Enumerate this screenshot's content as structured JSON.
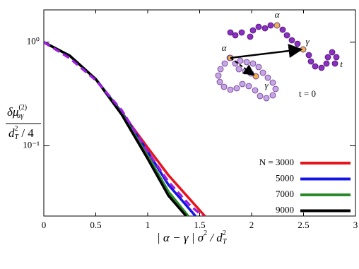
{
  "chart_data": {
    "type": "line",
    "ylabel": {
      "num": "δμ",
      "num_sup": "(2)",
      "num_sub": "αγ",
      "den": "d",
      "den_sup": "2",
      "den_sub": "T",
      "den_rest": " / 4"
    },
    "xlabel": {
      "main": "| α − γ | σ",
      "sup": "2",
      "mid": " / d",
      "sup2": "2",
      "sub2": "T"
    },
    "xlim": [
      0,
      3
    ],
    "xticks": [
      0,
      0.5,
      1,
      1.5,
      2,
      2.5,
      3
    ],
    "ylim": [
      0.021,
      2.05
    ],
    "log_y": true,
    "yticks": [
      {
        "value": 1,
        "label": "10⁰"
      },
      {
        "value": 0.1,
        "label": "10⁻¹"
      }
    ],
    "series": [
      {
        "name": "N = 3000",
        "color": "#e8141c",
        "x": [
          0,
          0.25,
          0.5,
          0.75,
          1,
          1.2,
          1.4,
          1.55
        ],
        "values": [
          1,
          0.74,
          0.44,
          0.21,
          0.096,
          0.052,
          0.031,
          0.021
        ]
      },
      {
        "name": "5000",
        "color": "#1414e6",
        "x": [
          0,
          0.25,
          0.5,
          0.75,
          1,
          1.2,
          1.46
        ],
        "values": [
          1,
          0.74,
          0.44,
          0.21,
          0.088,
          0.042,
          0.021
        ]
      },
      {
        "name": "7000",
        "color": "#2a8a2a",
        "x": [
          0,
          0.25,
          0.5,
          0.75,
          1,
          1.2,
          1.39
        ],
        "values": [
          1,
          0.74,
          0.44,
          0.205,
          0.08,
          0.036,
          0.021
        ]
      },
      {
        "name": "9000",
        "color": "#000000",
        "x": [
          0,
          0.25,
          0.5,
          0.75,
          1,
          1.2,
          1.37
        ],
        "values": [
          1,
          0.74,
          0.44,
          0.2,
          0.075,
          0.033,
          0.021
        ]
      },
      {
        "color": "#9a1ee0",
        "dashed": true,
        "x": [
          0,
          0.25,
          0.5,
          0.75,
          1,
          1.2,
          1.4,
          1.53
        ],
        "values": [
          1,
          0.7,
          0.43,
          0.22,
          0.088,
          0.045,
          0.027,
          0.021
        ]
      }
    ],
    "annotations": [
      "α",
      "α",
      "γ",
      "γ",
      "t",
      "t = 0"
    ]
  }
}
